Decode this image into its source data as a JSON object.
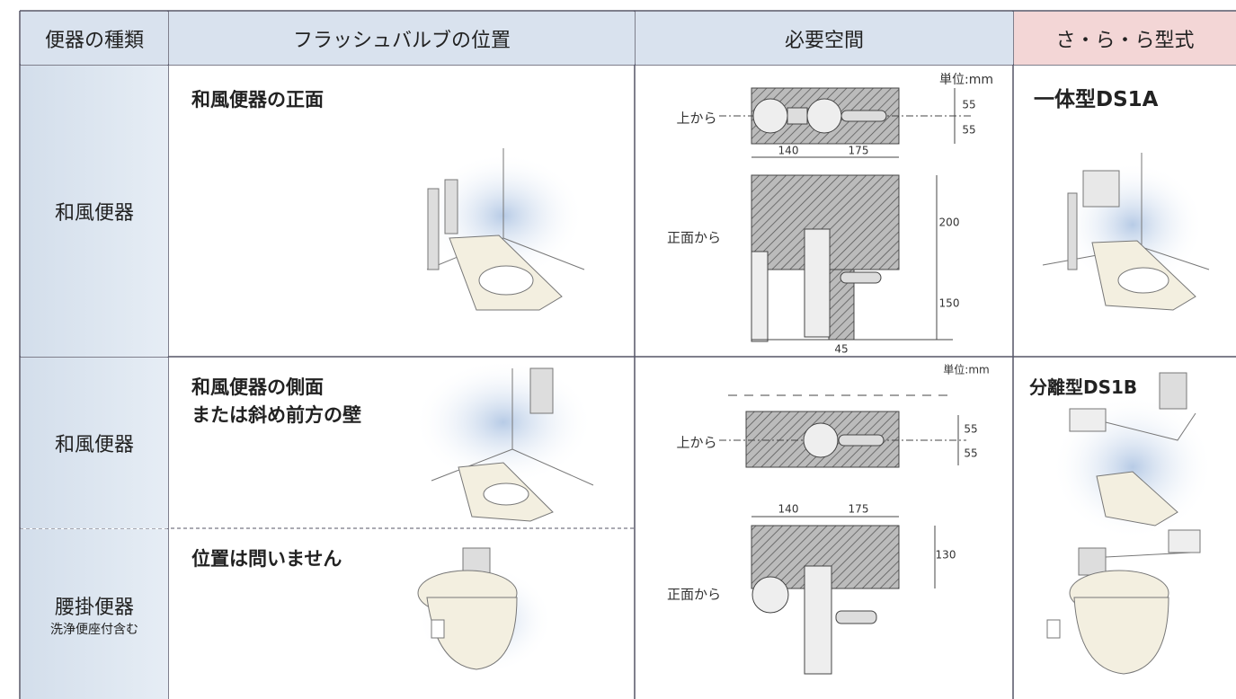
{
  "header": [
    "便器の種類",
    "フラッシュバルブの位置",
    "必要空間",
    "さ・ら・ら型式"
  ],
  "rows": [
    {
      "type": "和風便器",
      "position": [
        "和風便器の正面"
      ],
      "model": "一体型DS1A"
    },
    {
      "type": "和風便器",
      "position": [
        "和風便器の側面",
        "または斜め前方の壁"
      ],
      "model": "分離型DS1B"
    },
    {
      "type": "腰掛便器",
      "type_note": "洗浄便座付含む",
      "position": [
        "位置は問いません"
      ]
    }
  ],
  "space": [
    {
      "unit": "単位:mm",
      "top_label": "上から",
      "front_label": "正面から",
      "dims": {
        "top_upper": 55,
        "top_lower": 55,
        "left_width": 140,
        "right_width": 175,
        "upper_height": 200,
        "lower_height": 150,
        "bottom_width": 45
      }
    },
    {
      "unit": "単位:mm",
      "top_label": "上から",
      "front_label": "正面から",
      "dims": {
        "top_upper": 55,
        "top_lower": 55,
        "left_width": 140,
        "right_width": 175,
        "height": 130
      }
    }
  ]
}
